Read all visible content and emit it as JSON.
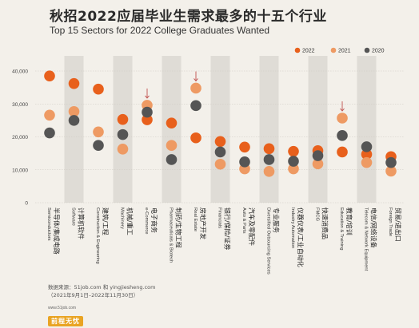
{
  "title_zh": "秋招2022应届毕业生需求最多的十五个行业",
  "title_en": "Top 15 Sectors for 2022 College Graduates Wanted",
  "source_line1": "数据来源：51job.com 和 yingjiesheng.com",
  "source_line2": "（2021年9月1日–2022年11月30日）",
  "logo_url": "www.51job.com",
  "logo_text": "前程无忧",
  "colors": {
    "2022": "#e8601c",
    "2021": "#ee9a63",
    "2020": "#555555",
    "band": "#dfdcd6",
    "grid": "#cfcac2",
    "arrow": "#c0504d"
  },
  "chart_data": {
    "type": "scatter",
    "title": "秋招2022应届毕业生需求最多的十五个行业",
    "subtitle": "Top 15 Sectors for 2022 College Graduates Wanted",
    "ylim": [
      0,
      40000
    ],
    "yticks": [
      "0",
      "10,000",
      "20,000",
      "30,000",
      "40,000"
    ],
    "ytick_values": [
      0,
      10000,
      20000,
      30000,
      40000
    ],
    "grid": true,
    "legend_position": "top-right",
    "categories": [
      {
        "en": "Semiconductors",
        "zh": "半导体/集成电路"
      },
      {
        "en": "Software",
        "zh": "计算机软件"
      },
      {
        "en": "Construction & Engineering",
        "zh": "建筑/工程"
      },
      {
        "en": "Machinery",
        "zh": "机械/重工"
      },
      {
        "en": "e-Commerce",
        "zh": "电子商务"
      },
      {
        "en": "Pharmaceuticals & Biotech",
        "zh": "制药/生物工程"
      },
      {
        "en": "Real Estate",
        "zh": "房地产开发"
      },
      {
        "en": "Financials",
        "zh": "银行/保险/证券"
      },
      {
        "en": "Auto & Parts",
        "zh": "汽车及零配件"
      },
      {
        "en": "Diversified Outsourcing Services",
        "zh": "专业服务"
      },
      {
        "en": "Industry Automation",
        "zh": "仪器仪表/工业自动化"
      },
      {
        "en": "FMCG",
        "zh": "快速消费品"
      },
      {
        "en": "Education & Training",
        "zh": "教育/培训"
      },
      {
        "en": "Telecom & Network Equipment",
        "zh": "电信/网络设备"
      },
      {
        "en": "Foreign Trade",
        "zh": "贸易/进出口"
      }
    ],
    "series": [
      {
        "name": "2022",
        "values": [
          38500,
          36200,
          34500,
          25300,
          25200,
          24200,
          19700,
          18600,
          16900,
          16400,
          15600,
          15800,
          15400,
          14700,
          14000
        ]
      },
      {
        "name": "2021",
        "values": [
          26600,
          27700,
          21500,
          16300,
          29600,
          17400,
          34800,
          11700,
          10300,
          9500,
          10300,
          11800,
          25700,
          12200,
          9600
        ]
      },
      {
        "name": "2020",
        "values": [
          21200,
          25000,
          17400,
          20700,
          27500,
          13100,
          29500,
          15400,
          12400,
          13100,
          12600,
          14300,
          20400,
          17000,
          12200
        ]
      }
    ],
    "arrow_categories": [
      "e-Commerce",
      "Real Estate",
      "Education & Training"
    ]
  }
}
